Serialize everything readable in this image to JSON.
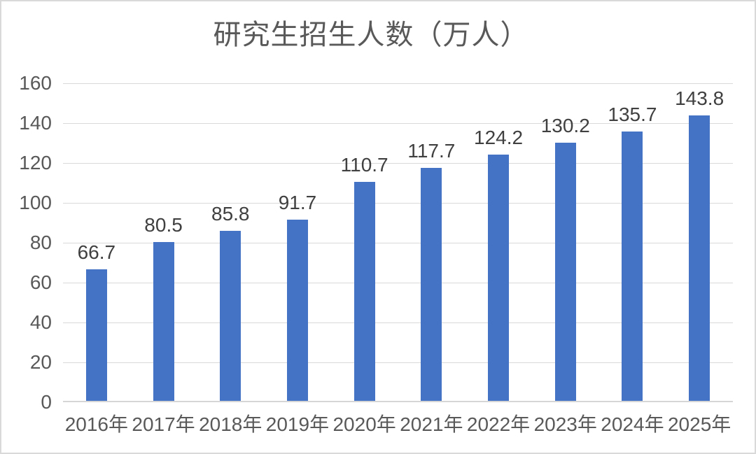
{
  "figure": {
    "background": "#FFFFFF",
    "border_color": "#D9D9D9"
  },
  "chart_data": {
    "type": "bar",
    "title": "研究生招生人数（万人）",
    "categories": [
      "2016年",
      "2017年",
      "2018年",
      "2019年",
      "2020年",
      "2021年",
      "2022年",
      "2023年",
      "2024年",
      "2025年"
    ],
    "values": [
      66.7,
      80.5,
      85.8,
      91.7,
      110.7,
      117.7,
      124.2,
      130.2,
      135.7,
      143.8
    ],
    "data_labels": [
      "66.7",
      "80.5",
      "85.8",
      "91.7",
      "110.7",
      "117.7",
      "124.2",
      "130.2",
      "135.7",
      "143.8"
    ],
    "xlabel": "",
    "ylabel": "",
    "ylim": [
      0,
      160
    ],
    "yticks": [
      0,
      20,
      40,
      60,
      80,
      100,
      120,
      140,
      160
    ],
    "grid": true,
    "legend": "none",
    "bar_color": "#4472C4",
    "title_color": "#595959",
    "axis_label_color": "#595959",
    "data_label_color": "#404040",
    "gridline_color": "#D9D9D9"
  }
}
